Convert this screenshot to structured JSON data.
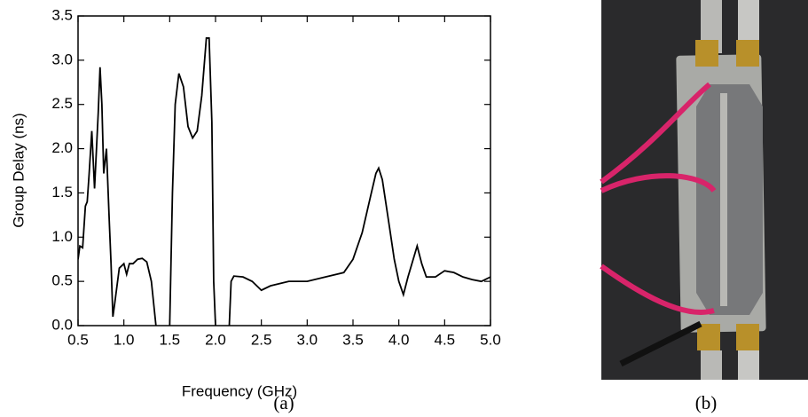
{
  "chart_data": {
    "type": "line",
    "xlabel": "Frequency (GHz)",
    "ylabel": "Group Delay (ns)",
    "color": "#000000",
    "xlim": [
      0.5,
      5.0
    ],
    "ylim": [
      0,
      3.5
    ],
    "xticks": [
      0.5,
      {
        "value": 1,
        "label": "1.0"
      },
      1.5,
      {
        "value": 2,
        "label": "2.0"
      },
      2.5,
      {
        "value": 3,
        "label": "3.0"
      },
      3.5,
      {
        "value": 4,
        "label": "4.0"
      },
      4.5,
      {
        "value": 5,
        "label": "5.0"
      }
    ],
    "yticks": [
      {
        "value": 0,
        "label": "0.0"
      },
      0.5,
      {
        "value": 1,
        "label": "1.0"
      },
      1.5,
      {
        "value": 2,
        "label": "2.0"
      },
      2.5,
      {
        "value": 3,
        "label": "3.0"
      },
      3.5
    ],
    "x": [
      0.5,
      0.52,
      0.55,
      0.58,
      0.6,
      0.62,
      0.65,
      0.68,
      0.72,
      0.74,
      0.76,
      0.78,
      0.81,
      0.84,
      0.86,
      0.88,
      0.9,
      0.95,
      1.0,
      1.03,
      1.06,
      1.1,
      1.15,
      1.2,
      1.25,
      1.3,
      1.33,
      1.35,
      1.42,
      1.5,
      1.53,
      1.56,
      1.6,
      1.65,
      1.7,
      1.75,
      1.8,
      1.85,
      1.9,
      1.93,
      1.96,
      1.98,
      2.0,
      2.08,
      2.15,
      2.17,
      2.2,
      2.3,
      2.4,
      2.5,
      2.6,
      2.8,
      3.0,
      3.2,
      3.4,
      3.5,
      3.6,
      3.7,
      3.75,
      3.78,
      3.82,
      3.9,
      3.95,
      4.0,
      4.05,
      4.1,
      4.2,
      4.25,
      4.3,
      4.4,
      4.5,
      4.6,
      4.7,
      4.8,
      4.9,
      5.0
    ],
    "values": [
      0.75,
      0.9,
      0.88,
      1.35,
      1.4,
      1.7,
      2.2,
      1.55,
      2.4,
      2.92,
      2.5,
      1.72,
      2.0,
      1.2,
      0.7,
      0.1,
      0.25,
      0.65,
      0.7,
      0.58,
      0.7,
      0.7,
      0.75,
      0.76,
      0.72,
      0.5,
      0.2,
      0.0,
      null,
      0.0,
      1.5,
      2.5,
      2.85,
      2.7,
      2.25,
      2.12,
      2.2,
      2.6,
      3.25,
      3.25,
      2.3,
      0.5,
      0.0,
      null,
      0.0,
      0.5,
      0.56,
      0.55,
      0.5,
      0.4,
      0.45,
      0.5,
      0.5,
      0.55,
      0.6,
      0.75,
      1.05,
      1.5,
      1.72,
      1.78,
      1.65,
      1.1,
      0.75,
      0.5,
      0.35,
      0.55,
      0.9,
      0.7,
      0.55,
      0.55,
      0.62,
      0.6,
      0.55,
      0.52,
      0.5,
      0.55
    ]
  },
  "captions": [
    "(a)",
    "(b)"
  ]
}
